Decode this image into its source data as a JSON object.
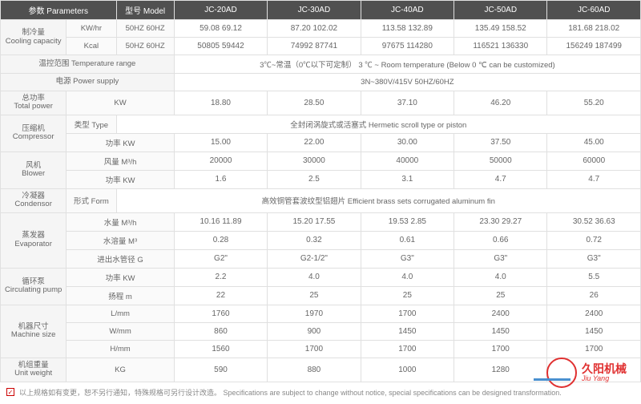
{
  "hdr": {
    "p": "参数 Parameters",
    "m": "型号 Model",
    "c": [
      "JC-20AD",
      "JC-30AD",
      "JC-40AD",
      "JC-50AD",
      "JC-60AD"
    ]
  },
  "r": [
    {
      "l": "制冷量\nCooling capacity",
      "s": "KW/hr",
      "s2": "50HZ  60HZ",
      "v": [
        "59.08 69.12",
        "87.20  102.02",
        "113.58  132.89",
        "135.49  158.52",
        "181.68  218.02"
      ]
    },
    {
      "s": "Kcal",
      "s2": "50HZ  60HZ",
      "v": [
        "50805  59442",
        "74992  87741",
        "97675  114280",
        "116521  136330",
        "156249  187499"
      ]
    },
    {
      "l": "温控范围 Temperature range",
      "sp": "3℃~常温（0℃以下可定制）  3 ℃ ~ Room temperature (Below 0 ℃ can be customized)"
    },
    {
      "l": "电源 Power supply",
      "sp": "3N~380V/415V 50HZ/60HZ"
    },
    {
      "l": "总功率\nTotal power",
      "s": "KW",
      "v": [
        "18.80",
        "28.50",
        "37.10",
        "46.20",
        "55.20"
      ]
    },
    {
      "l": "压缩机\nCompressor",
      "s": "类型 Type",
      "sp": "全封闭涡旋式或活塞式 Hermetic scroll type or piston"
    },
    {
      "s": "功率 KW",
      "v": [
        "15.00",
        "22.00",
        "30.00",
        "37.50",
        "45.00"
      ]
    },
    {
      "l": "风机\nBlower",
      "s": "风量 M³/h",
      "v": [
        "20000",
        "30000",
        "40000",
        "50000",
        "60000"
      ]
    },
    {
      "s": "功率 KW",
      "v": [
        "1.6",
        "2.5",
        "3.1",
        "4.7",
        "4.7"
      ]
    },
    {
      "l": "冷凝器\nCondensor",
      "s": "形式 Form",
      "sp": "高效铜管套波纹型铝翅片 Efficient brass sets corrugated aluminum fin"
    },
    {
      "l": "蒸发器\nEvaporator",
      "s": "水量 M³/h",
      "v": [
        "10.16  11.89",
        "15.20  17.55",
        "19.53  2.85",
        "23.30  29.27",
        "30.52  36.63"
      ]
    },
    {
      "s": "水溶量 M³",
      "v": [
        "0.28",
        "0.32",
        "0.61",
        "0.66",
        "0.72"
      ]
    },
    {
      "s": "进出水管径 G",
      "v": [
        "G2\"",
        "G2-1/2\"",
        "G3\"",
        "G3\"",
        "G3\""
      ]
    },
    {
      "l": "循环泵\nCirculating pump",
      "s": "功率 KW",
      "v": [
        "2.2",
        "4.0",
        "4.0",
        "4.0",
        "5.5"
      ]
    },
    {
      "s": "扬程 m",
      "v": [
        "22",
        "25",
        "25",
        "25",
        "26"
      ]
    },
    {
      "l": "机器尺寸\nMachine size",
      "s": "L/mm",
      "v": [
        "1760",
        "1970",
        "1700",
        "2400",
        "2400"
      ]
    },
    {
      "s": "W/mm",
      "v": [
        "860",
        "900",
        "1450",
        "1450",
        "1450"
      ]
    },
    {
      "s": "H/mm",
      "v": [
        "1560",
        "1700",
        "1700",
        "1700",
        "1700"
      ]
    },
    {
      "l": "机组重量\nUnit weight",
      "s": "KG",
      "v": [
        "590",
        "880",
        "1000",
        "1280",
        ""
      ]
    }
  ],
  "foot": "以上规格如有变更，恕不另行通知，特殊规格可另行设计改造。   Specifications are subject to change without notice, special specifications can be designed transformation.",
  "logo": {
    "t1": "久阳机械",
    "t2": "Jiu  Yang"
  }
}
